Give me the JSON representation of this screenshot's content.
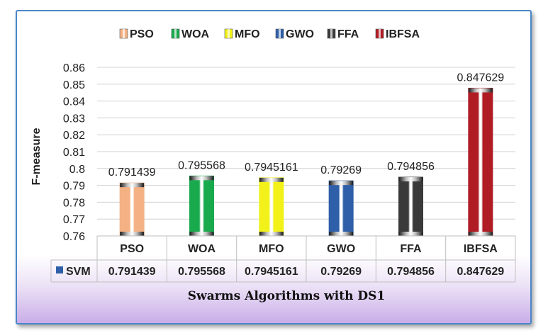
{
  "chart_data": {
    "type": "bar",
    "title": "",
    "xlabel": "Swarms Algorithms with DS1",
    "ylabel": "F-measure",
    "categories": [
      "PSO",
      "WOA",
      "MFO",
      "GWO",
      "FFA",
      "IBFSA"
    ],
    "series": [
      {
        "name": "SVM",
        "values": [
          0.791439,
          0.795568,
          0.7945161,
          0.79269,
          0.794856,
          0.847629
        ],
        "value_labels": [
          "0.791439",
          "0.795568",
          "0.7945161",
          "0.79269",
          "0.794856",
          "0.847629"
        ]
      }
    ],
    "ylim": [
      0.76,
      0.86
    ],
    "yticks": [
      "0.76",
      "0.77",
      "0.78",
      "0.79",
      "0.8",
      "0.81",
      "0.82",
      "0.83",
      "0.84",
      "0.85",
      "0.86"
    ],
    "grid": true,
    "legend_position": "top",
    "legend": [
      {
        "label": "PSO",
        "color": "#f4b183"
      },
      {
        "label": "WOA",
        "color": "#1aaa4e"
      },
      {
        "label": "MFO",
        "color": "#f2f21a"
      },
      {
        "label": "GWO",
        "color": "#2e5fa8"
      },
      {
        "label": "FFA",
        "color": "#3a3a3a"
      },
      {
        "label": "IBFSA",
        "color": "#b01c24"
      }
    ],
    "data_table": true,
    "colors": {
      "PSO": "#f4b183",
      "WOA": "#1aaa4e",
      "MFO": "#f2f21a",
      "GWO": "#2e5fa8",
      "FFA": "#3a3a3a",
      "IBFSA": "#b01c24",
      "series_marker": "#2e5fa8"
    }
  }
}
